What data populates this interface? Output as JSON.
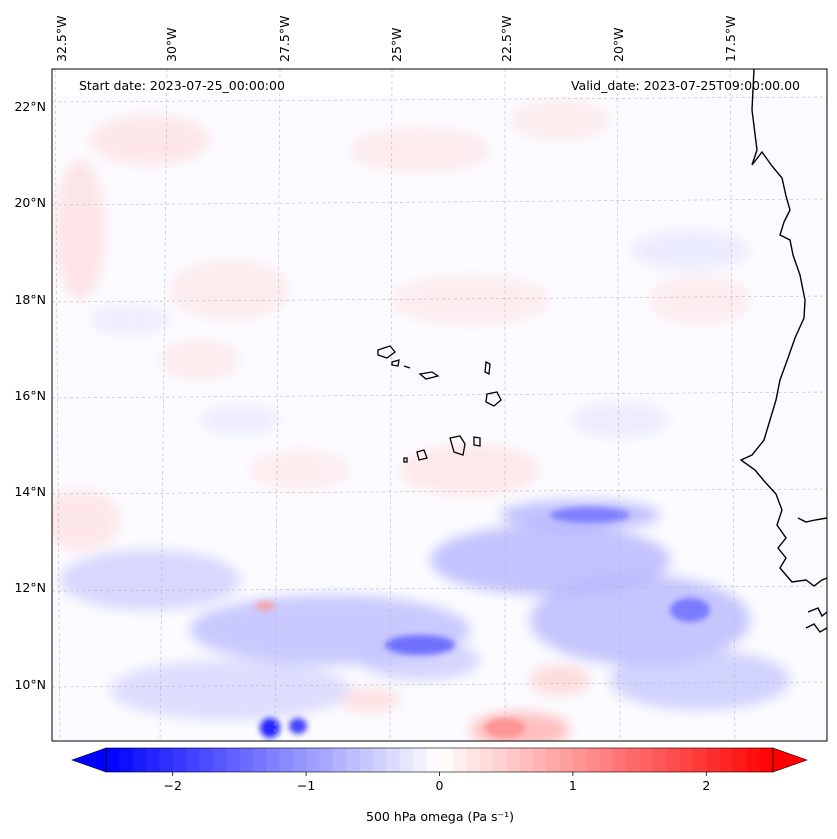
{
  "header": {
    "start_date": "Start date: 2023-07-25_00:00:00",
    "valid_date": "Valid_date: 2023-07-25T09:00:00.00"
  },
  "map": {
    "variable": "500 hPa omega",
    "lon_labels": [
      "32.5°W",
      "30°W",
      "27.5°W",
      "25°W",
      "22.5°W",
      "20°W",
      "17.5°W"
    ],
    "lat_labels": [
      "22°N",
      "20°N",
      "18°N",
      "16°N",
      "14°N",
      "12°N",
      "10°N"
    ],
    "extent": {
      "lon_min": -33.0,
      "lon_max": -15.2,
      "lat_min": 8.8,
      "lat_max": 22.8
    },
    "gridlines": true
  },
  "colorbar": {
    "label": "500 hPa omega (Pa s⁻¹)",
    "ticks": [
      "−2",
      "−1",
      "0",
      "1",
      "2"
    ],
    "tick_values": [
      -2,
      -1,
      0,
      1,
      2
    ],
    "range": [
      -2.5,
      2.5
    ],
    "extend": "both",
    "colormap": "bwr",
    "color_low": "#0000ff",
    "color_mid": "#ffffff",
    "color_high": "#ff0000"
  }
}
